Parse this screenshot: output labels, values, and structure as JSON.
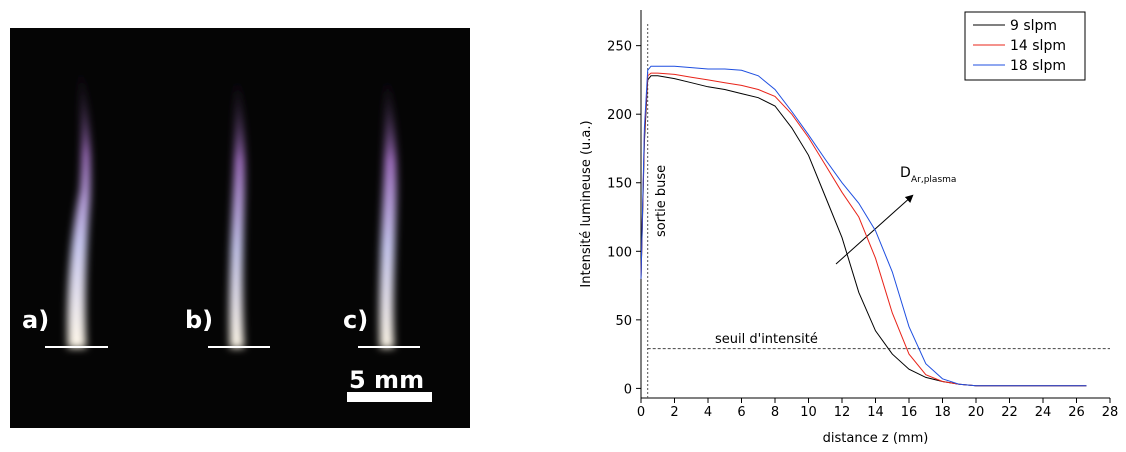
{
  "image_panel": {
    "labels": [
      "a)",
      "b)",
      "c)"
    ],
    "scale_label": "5 mm"
  },
  "chart_data": {
    "type": "line",
    "xlabel": "distance z (mm)",
    "ylabel": "Intensité lumineuse (u.a.)",
    "annotations": {
      "nozzle": "sortie buse",
      "threshold": "seuil d'intensité",
      "diameter": "D",
      "diameter_sub": "Ar,plasma"
    },
    "nozzle_exit_x": 0.4,
    "threshold_y": 29,
    "xlim": [
      0,
      28
    ],
    "xticks": [
      0,
      2,
      4,
      6,
      8,
      10,
      12,
      14,
      16,
      18,
      20,
      22,
      24,
      26,
      28
    ],
    "ylim": [
      -7,
      276
    ],
    "yticks": [
      0,
      50,
      100,
      150,
      200,
      250
    ],
    "legend": "upper right",
    "x": [
      0,
      0.2,
      0.4,
      0.6,
      1,
      2,
      3,
      4,
      5,
      6,
      7,
      8,
      9,
      10,
      11,
      12,
      13,
      14,
      15,
      16,
      17,
      18,
      19,
      20,
      22,
      24,
      26,
      26.6
    ],
    "series": [
      {
        "name": "9 slpm",
        "color": "#000000",
        "values": [
          80,
          180,
          225,
          228,
          228,
          226,
          223,
          220,
          218,
          215,
          212,
          206,
          190,
          170,
          140,
          110,
          70,
          42,
          25,
          14,
          8,
          5,
          3,
          2,
          2,
          2,
          2,
          2
        ]
      },
      {
        "name": "14 slpm",
        "color": "#e8241a",
        "values": [
          80,
          185,
          228,
          230,
          230,
          229,
          227,
          225,
          223,
          221,
          218,
          213,
          200,
          183,
          163,
          143,
          125,
          95,
          55,
          25,
          10,
          5,
          3,
          2,
          2,
          2,
          2,
          2
        ]
      },
      {
        "name": "18 slpm",
        "color": "#1f4fe0",
        "values": [
          80,
          190,
          232,
          235,
          235,
          235,
          234,
          233,
          233,
          232,
          228,
          218,
          202,
          185,
          167,
          150,
          135,
          115,
          85,
          45,
          18,
          7,
          3,
          2,
          2,
          2,
          2,
          2
        ]
      }
    ]
  }
}
